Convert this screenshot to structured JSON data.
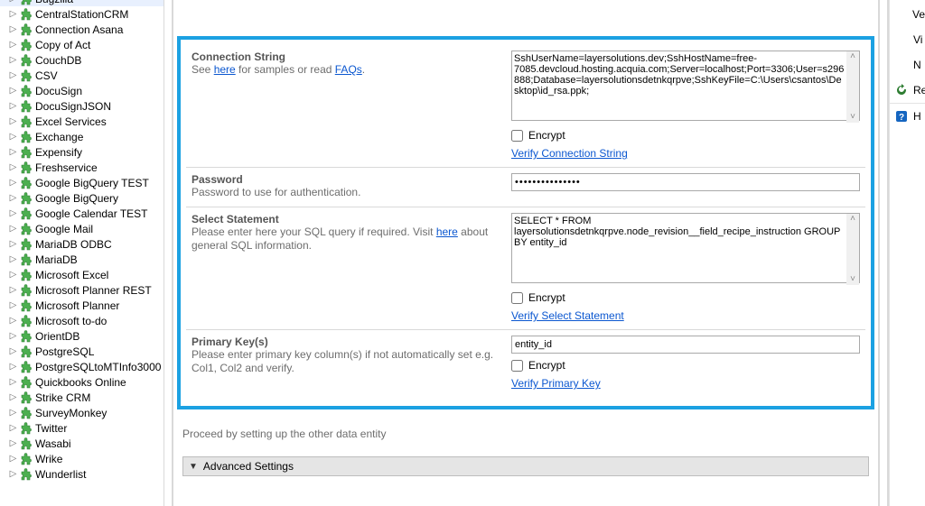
{
  "tree": {
    "items": [
      "Bugzilla",
      "CentralStationCRM",
      "Connection Asana",
      "Copy of Act",
      "CouchDB",
      "CSV",
      "DocuSign",
      "DocuSignJSON",
      "Excel Services",
      "Exchange",
      "Expensify",
      "Freshservice",
      "Google BigQuery TEST",
      "Google BigQuery",
      "Google Calendar TEST",
      "Google Mail",
      "MariaDB ODBC",
      "MariaDB",
      "Microsoft Excel",
      "Microsoft Planner REST",
      "Microsoft Planner",
      "Microsoft to-do",
      "OrientDB",
      "PostgreSQL",
      "PostgreSQLtoMTInfo3000",
      "Quickbooks Online",
      "Strike CRM",
      "SurveyMonkey",
      "Twitter",
      "Wasabi",
      "Wrike",
      "Wunderlist"
    ]
  },
  "form": {
    "connection": {
      "label": "Connection String",
      "desc_prefix": "See ",
      "desc_link1": "here",
      "desc_mid": " for samples or read ",
      "desc_link2": "FAQs",
      "desc_suffix": ".",
      "value": "SshUserName=layersolutions.dev;SshHostName=free-7085.devcloud.hosting.acquia.com;Server=localhost;Port=3306;User=s296888;Database=layersolutionsdetnkqrpve;SshKeyFile=C:\\Users\\csantos\\Desktop\\id_rsa.ppk;",
      "encrypt_label": "Encrypt",
      "verify_label": "Verify Connection String"
    },
    "password": {
      "label": "Password",
      "desc": "Password to use for authentication.",
      "value": "•••••••••••••••"
    },
    "select": {
      "label": "Select Statement",
      "desc_prefix": "Please enter here your SQL query if required. Visit ",
      "desc_link": "here",
      "desc_suffix": " about general SQL information.",
      "value": "SELECT * FROM layersolutionsdetnkqrpve.node_revision__field_recipe_instruction GROUP BY entity_id",
      "encrypt_label": "Encrypt",
      "verify_label": "Verify Select Statement"
    },
    "primary": {
      "label": "Primary Key(s)",
      "desc": "Please enter primary key column(s) if not automatically set e.g. Col1, Col2 and verify.",
      "value": "entity_id",
      "encrypt_label": "Encrypt",
      "verify_label": "Verify Primary Key"
    }
  },
  "proceed_text": "Proceed by setting up the other data entity",
  "advanced_label": "Advanced Settings",
  "right": {
    "items": [
      "Ve",
      "Vi",
      "N",
      "Re",
      "H"
    ]
  }
}
